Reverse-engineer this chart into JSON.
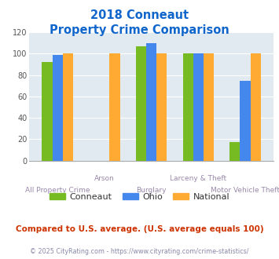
{
  "title_line1": "2018 Conneaut",
  "title_line2": "Property Crime Comparison",
  "categories": [
    "All Property Crime",
    "Arson",
    "Burglary",
    "Larceny & Theft",
    "Motor Vehicle Theft"
  ],
  "conneaut": [
    92,
    0,
    107,
    100,
    17
  ],
  "ohio": [
    99,
    0,
    110,
    100,
    75
  ],
  "national": [
    100,
    100,
    100,
    100,
    100
  ],
  "color_conneaut": "#77bb22",
  "color_ohio": "#4488ee",
  "color_national": "#ffaa33",
  "color_background": "#e0eaf0",
  "color_title": "#1166cc",
  "color_xlabel_bottom": "#9988aa",
  "color_xlabel_top": "#9988aa",
  "color_note": "#cc3300",
  "color_footer": "#8888aa",
  "ylim": [
    0,
    120
  ],
  "yticks": [
    0,
    20,
    40,
    60,
    80,
    100,
    120
  ],
  "note_text": "Compared to U.S. average. (U.S. average equals 100)",
  "footer_text": "© 2025 CityRating.com - https://www.cityrating.com/crime-statistics/",
  "legend_labels": [
    "Conneaut",
    "Ohio",
    "National"
  ],
  "bar_width": 0.22
}
